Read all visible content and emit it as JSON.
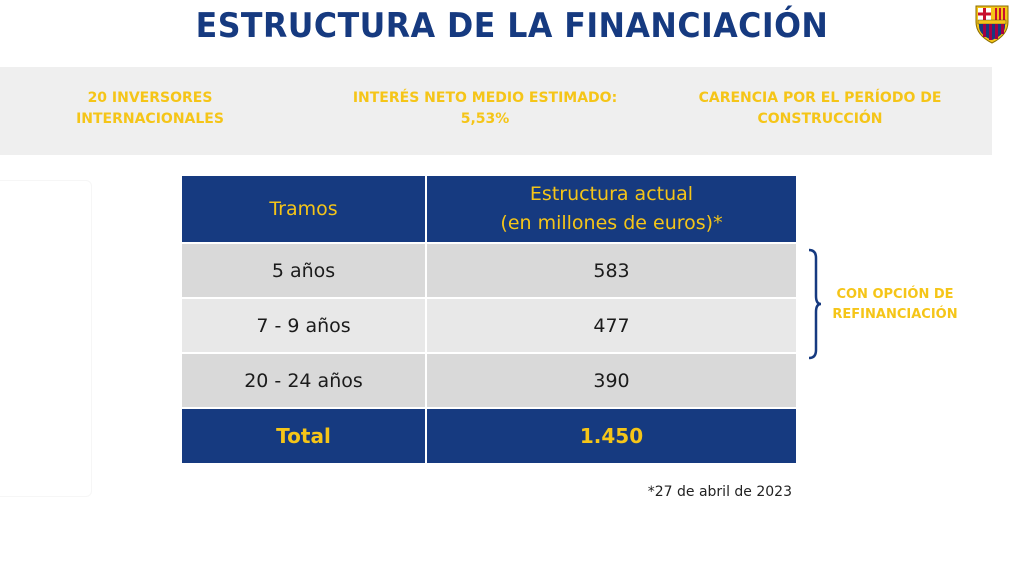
{
  "title": "ESTRUCTURA DE LA FINANCIACIÓN",
  "logo_icon": "fc-barcelona-crest-icon",
  "colors": {
    "navy": "#163a80",
    "gold": "#f5c518",
    "banner_bg": "#efefef"
  },
  "banner": {
    "items": [
      {
        "line1": "20 INVERSORES",
        "line2": "INTERNACIONALES"
      },
      {
        "line1": "INTERÉS NETO MEDIO ESTIMADO:",
        "line2": "5,53%"
      },
      {
        "line1": "CARENCIA POR EL PERÍODO DE",
        "line2": "CONSTRUCCIÓN"
      }
    ]
  },
  "table": {
    "headers": [
      {
        "line1": "Tramos",
        "line2": ""
      },
      {
        "line1": "Estructura actual",
        "line2": "(en millones de euros)*"
      }
    ],
    "rows": [
      {
        "tramo": "5 años",
        "valor": "583"
      },
      {
        "tramo": "7 - 9 años",
        "valor": "477"
      },
      {
        "tramo": "20 - 24 años",
        "valor": "390"
      }
    ],
    "total": {
      "label": "Total",
      "value": "1.450"
    }
  },
  "note": {
    "line1": "CON OPCIÓN DE",
    "line2": "REFINANCIACIÓN"
  },
  "footnote": "*27 de abril de 2023"
}
